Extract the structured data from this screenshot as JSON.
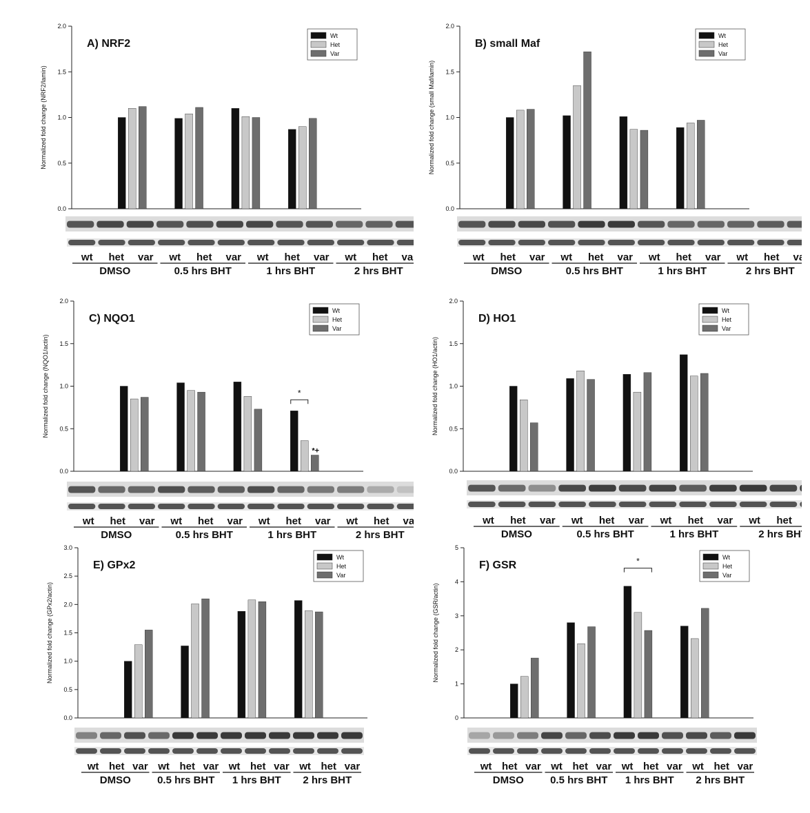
{
  "legend": {
    "wt": "Wt",
    "het": "Het",
    "var": "Var"
  },
  "colors": {
    "wt": "#111111",
    "het": "#c8c8c8",
    "var": "#6e6e6e",
    "blot": "#3a3a3a"
  },
  "lanes": [
    "wt",
    "het",
    "var",
    "wt",
    "het",
    "var",
    "wt",
    "het",
    "var",
    "wt",
    "het",
    "var"
  ],
  "groups": [
    "DMSO",
    "0.5 hrs BHT",
    "1 hrs BHT",
    "2 hrs BHT"
  ],
  "chart_data": [
    {
      "type": "bar",
      "title": "A) NRF2",
      "ylabel": "Normalized fold change (NRF2/lamin)",
      "ylim": [
        0,
        2.0
      ],
      "yticks": [
        "0.0",
        "0.5",
        "1.0",
        "1.5",
        "2.0"
      ],
      "categories": [
        "DMSO",
        "0.5 hrs BHT",
        "1 hrs BHT",
        "2 hrs BHT"
      ],
      "series": [
        {
          "name": "Wt",
          "values": [
            1.0,
            0.99,
            1.1,
            0.87
          ]
        },
        {
          "name": "Het",
          "values": [
            1.1,
            1.04,
            1.01,
            0.9
          ]
        },
        {
          "name": "Var",
          "values": [
            1.12,
            1.11,
            1.0,
            0.99
          ]
        }
      ],
      "legend_position": "top-right",
      "annotations": []
    },
    {
      "type": "bar",
      "title": "B) small Maf",
      "ylabel": "Normalized fold change (small Maf/lamin)",
      "ylim": [
        0,
        2.0
      ],
      "yticks": [
        "0.0",
        "0.5",
        "1.0",
        "1.5",
        "2.0"
      ],
      "categories": [
        "DMSO",
        "0.5 hrs BHT",
        "1 hrs BHT",
        "2 hrs BHT"
      ],
      "series": [
        {
          "name": "Wt",
          "values": [
            1.0,
            1.02,
            1.01,
            0.89
          ]
        },
        {
          "name": "Het",
          "values": [
            1.08,
            1.35,
            0.87,
            0.94
          ]
        },
        {
          "name": "Var",
          "values": [
            1.09,
            1.72,
            0.86,
            0.97
          ]
        }
      ],
      "legend_position": "top-right",
      "annotations": []
    },
    {
      "type": "bar",
      "title": "C) NQO1",
      "ylabel": "Normalized fold change (NQO1/actin)",
      "ylim": [
        0,
        2.0
      ],
      "yticks": [
        "0.0",
        "0.5",
        "1.0",
        "1.5",
        "2.0"
      ],
      "categories": [
        "DMSO",
        "0.5 hrs BHT",
        "1 hrs BHT",
        "2 hrs BHT"
      ],
      "series": [
        {
          "name": "Wt",
          "values": [
            1.0,
            1.04,
            1.05,
            0.71
          ]
        },
        {
          "name": "Het",
          "values": [
            0.85,
            0.95,
            0.88,
            0.36
          ]
        },
        {
          "name": "Var",
          "values": [
            0.87,
            0.93,
            0.73,
            0.19
          ]
        }
      ],
      "legend_position": "top-right",
      "annotations": [
        {
          "text": "*",
          "bracket": [
            3,
            0,
            1
          ],
          "level": 0.84
        },
        {
          "text": "*+",
          "group": 3,
          "series": 2
        }
      ]
    },
    {
      "type": "bar",
      "title": "D) HO1",
      "ylabel": "Normalized fold change (HO1/actin)",
      "ylim": [
        0,
        2.0
      ],
      "yticks": [
        "0.0",
        "0.5",
        "1.0",
        "1.5",
        "2.0"
      ],
      "categories": [
        "DMSO",
        "0.5 hrs BHT",
        "1 hrs BHT",
        "2 hrs BHT"
      ],
      "series": [
        {
          "name": "Wt",
          "values": [
            1.0,
            1.09,
            1.14,
            1.37
          ]
        },
        {
          "name": "Het",
          "values": [
            0.84,
            1.18,
            0.93,
            1.12
          ]
        },
        {
          "name": "Var",
          "values": [
            0.57,
            1.08,
            1.16,
            1.15
          ]
        }
      ],
      "legend_position": "top-right",
      "annotations": []
    },
    {
      "type": "bar",
      "title": "E) GPx2",
      "ylabel": "Normalized fold change (GPx2/actin)",
      "ylim": [
        0,
        3.0
      ],
      "yticks": [
        "0.0",
        "0.5",
        "1.0",
        "1.5",
        "2.0",
        "2.5",
        "3.0"
      ],
      "categories": [
        "DMSO",
        "0.5 hrs BHT",
        "1 hrs BHT",
        "2 hrs BHT"
      ],
      "series": [
        {
          "name": "Wt",
          "values": [
            1.0,
            1.27,
            1.88,
            2.07
          ]
        },
        {
          "name": "Het",
          "values": [
            1.29,
            2.01,
            2.08,
            1.89
          ]
        },
        {
          "name": "Var",
          "values": [
            1.55,
            2.1,
            2.05,
            1.87
          ]
        }
      ],
      "legend_position": "top-right",
      "annotations": []
    },
    {
      "type": "bar",
      "title": "F) GSR",
      "ylabel": "Normalized fold change (GSR/actin)",
      "ylim": [
        0,
        5
      ],
      "yticks": [
        "0",
        "1",
        "2",
        "3",
        "4",
        "5"
      ],
      "categories": [
        "DMSO",
        "0.5 hrs BHT",
        "1 hrs BHT",
        "2 hrs BHT"
      ],
      "series": [
        {
          "name": "Wt",
          "values": [
            1.0,
            2.8,
            3.87,
            2.7
          ]
        },
        {
          "name": "Het",
          "values": [
            1.22,
            2.18,
            3.1,
            2.33
          ]
        },
        {
          "name": "Var",
          "values": [
            1.76,
            2.68,
            2.57,
            3.22
          ]
        }
      ],
      "legend_position": "top-right",
      "annotations": [
        {
          "text": "*",
          "bracket": [
            2,
            0,
            2
          ],
          "level": 4.4
        }
      ]
    }
  ]
}
